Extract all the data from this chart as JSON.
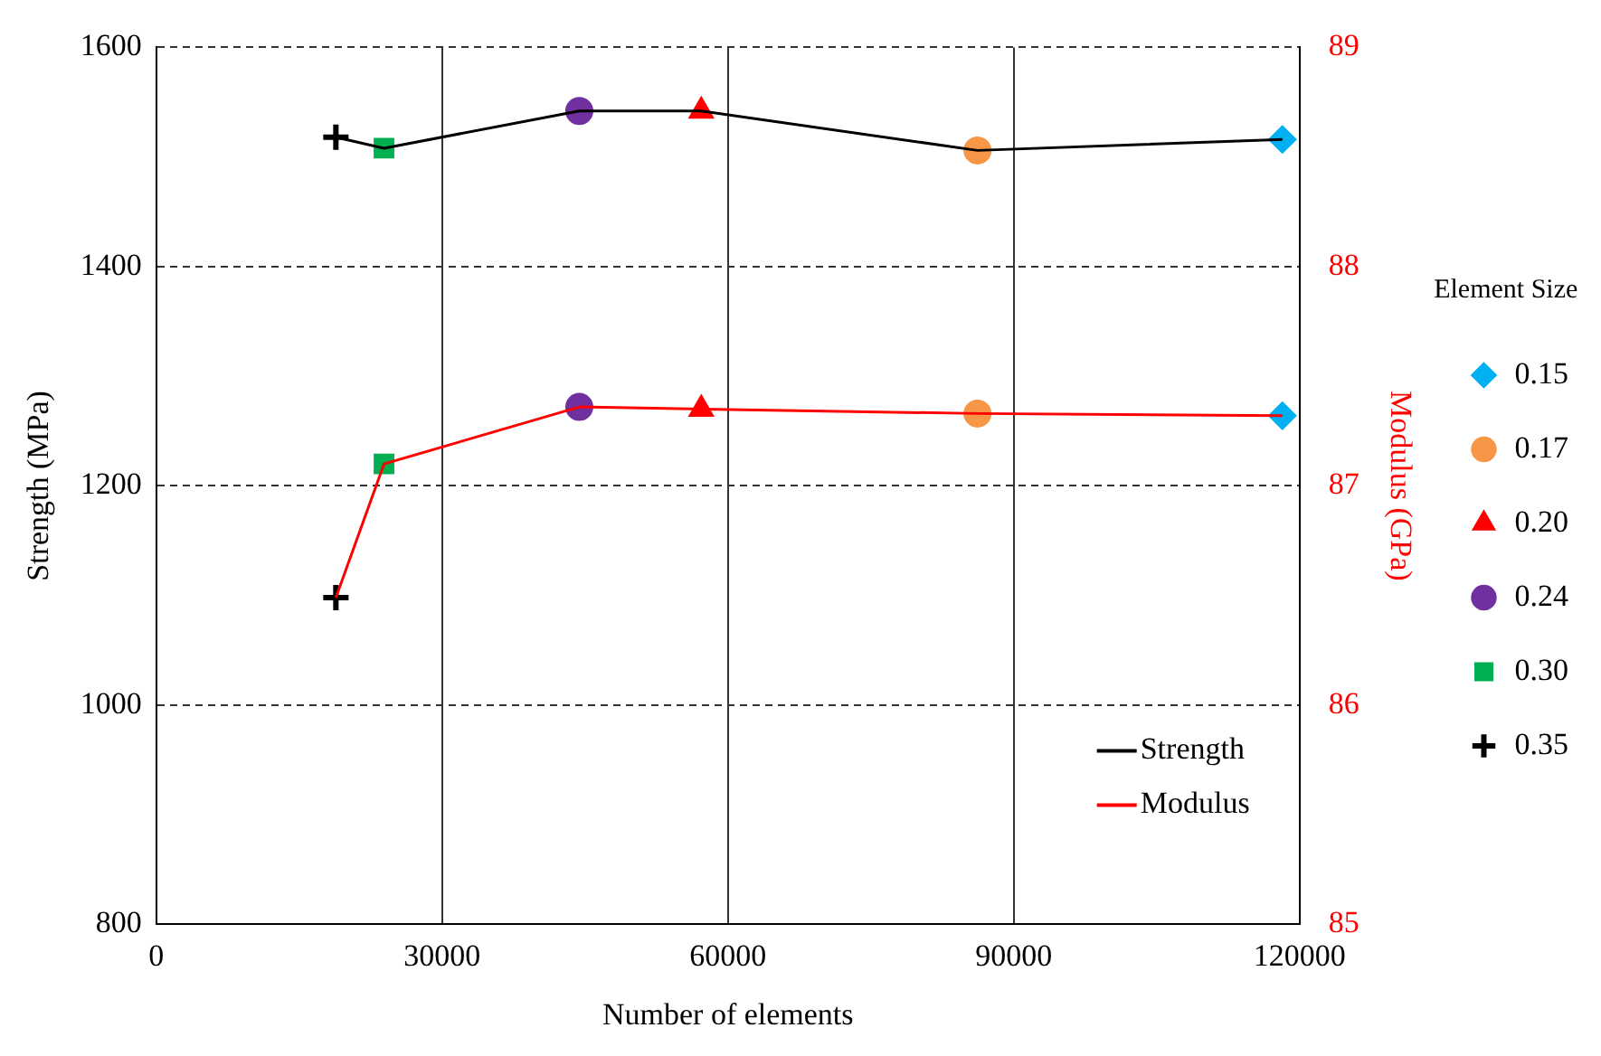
{
  "chart_data": {
    "type": "line",
    "xlabel": "Number of elements",
    "ylabel": "Strength (MPa)",
    "y2label": "Modulus (GPa)",
    "legend_title": "Element Size",
    "xlim": [
      0,
      120000
    ],
    "xticks": [
      0,
      30000,
      60000,
      90000,
      120000
    ],
    "ylim": [
      800,
      1600
    ],
    "yticks": [
      800,
      1000,
      1200,
      1400,
      1600
    ],
    "y2lim": [
      85,
      89
    ],
    "y2ticks": [
      85,
      86,
      87,
      88,
      89
    ],
    "grid": true,
    "legend": "right",
    "line_style": "solid",
    "series": [
      {
        "name": "Strength",
        "type": "line",
        "color": "#000000",
        "marker": "none",
        "x": [
          18850,
          23900,
          44400,
          57200,
          86200,
          118200
        ],
        "values": [
          1518,
          1508,
          1542,
          1542,
          1506,
          1516
        ]
      },
      {
        "name": "Modulus",
        "type": "line",
        "color": "#ff0000",
        "marker": "none",
        "axis": "y2",
        "x": [
          18850,
          23900,
          44400,
          57200,
          86200,
          118200
        ],
        "values": [
          86.49,
          87.1,
          87.36,
          87.35,
          87.33,
          87.32
        ]
      },
      {
        "name": "0.15",
        "type": "scatter",
        "color": "#00b0f0",
        "marker": "diamond",
        "x": [
          118200
        ],
        "values": [
          1516
        ]
      },
      {
        "name": "0.17",
        "type": "scatter",
        "color": "#f79646",
        "marker": "circle",
        "x": [
          86200
        ],
        "values": [
          1506
        ]
      },
      {
        "name": "0.20",
        "type": "scatter",
        "color": "#ff0000",
        "marker": "triangle",
        "x": [
          57200
        ],
        "values": [
          1542
        ]
      },
      {
        "name": "0.24",
        "type": "scatter",
        "color": "#7030a0",
        "marker": "circle",
        "x": [
          44400
        ],
        "values": [
          1542
        ]
      },
      {
        "name": "0.30",
        "type": "scatter",
        "color": "#00b050",
        "marker": "square",
        "x": [
          23900
        ],
        "values": [
          1508
        ]
      },
      {
        "name": "0.35",
        "type": "scatter",
        "color": "#000000",
        "marker": "cross",
        "x": [
          18850
        ],
        "values": [
          1518
        ]
      },
      {
        "type": "scatter",
        "color": "#00b0f0",
        "marker": "diamond",
        "axis": "y2",
        "x": [
          118200
        ],
        "values": [
          87.32
        ]
      },
      {
        "type": "scatter",
        "color": "#f79646",
        "marker": "circle",
        "axis": "y2",
        "x": [
          86200
        ],
        "values": [
          87.33
        ]
      },
      {
        "type": "scatter",
        "color": "#ff0000",
        "marker": "triangle",
        "axis": "y2",
        "x": [
          57200
        ],
        "values": [
          87.35
        ]
      },
      {
        "type": "scatter",
        "color": "#7030a0",
        "marker": "circle",
        "axis": "y2",
        "x": [
          44400
        ],
        "values": [
          87.36
        ]
      },
      {
        "type": "scatter",
        "color": "#00b050",
        "marker": "square",
        "axis": "y2",
        "x": [
          23900
        ],
        "values": [
          87.1
        ]
      },
      {
        "type": "scatter",
        "color": "#000000",
        "marker": "cross",
        "axis": "y2",
        "x": [
          18850
        ],
        "values": [
          86.49
        ]
      }
    ]
  }
}
